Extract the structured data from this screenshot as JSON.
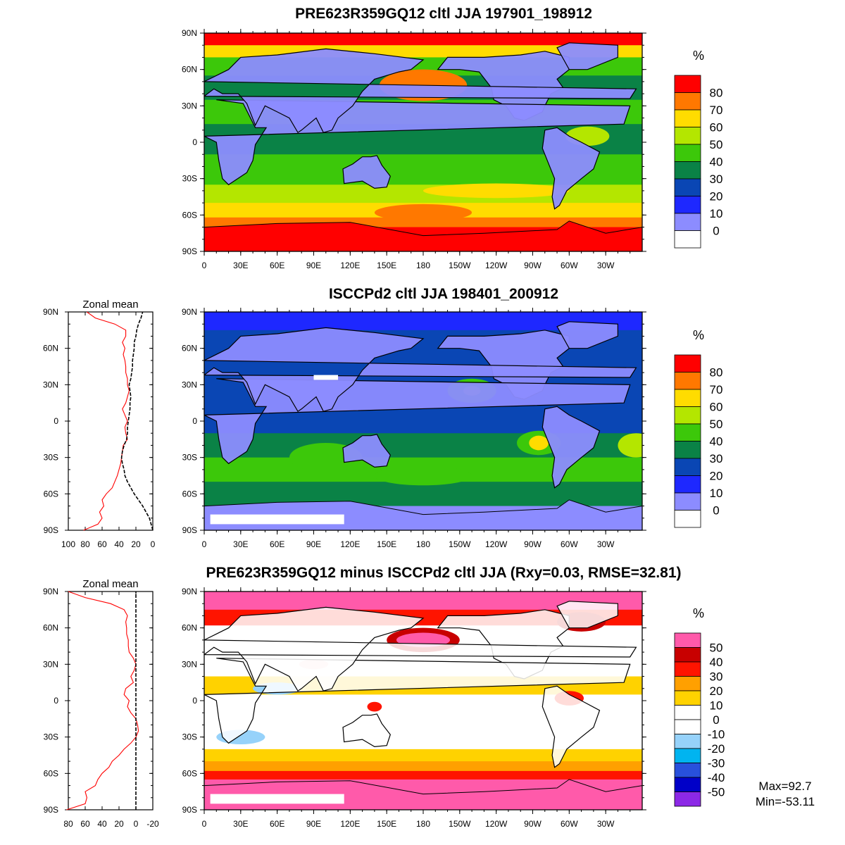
{
  "panels": [
    {
      "title": "PRE623R359GQ12 cltl JJA 197901_198912",
      "legend_unit": "%",
      "legend": [
        {
          "label": "80",
          "color": "#ff0000"
        },
        {
          "label": "70",
          "color": "#ff7800"
        },
        {
          "label": "60",
          "color": "#ffdc00"
        },
        {
          "label": "50",
          "color": "#b4e600"
        },
        {
          "label": "40",
          "color": "#3cc80a"
        },
        {
          "label": "30",
          "color": "#0a8246"
        },
        {
          "label": "20",
          "color": "#0a46b4"
        },
        {
          "label": "10",
          "color": "#1e28ff"
        },
        {
          "label": "0",
          "color": "#8c8cff"
        },
        {
          "label": "",
          "color": "#ffffff"
        }
      ]
    },
    {
      "title": "ISCCPd2 cltl JJA 198401_200912",
      "legend_unit": "%",
      "legend": [
        {
          "label": "80",
          "color": "#ff0000"
        },
        {
          "label": "70",
          "color": "#ff7800"
        },
        {
          "label": "60",
          "color": "#ffdc00"
        },
        {
          "label": "50",
          "color": "#b4e600"
        },
        {
          "label": "40",
          "color": "#3cc80a"
        },
        {
          "label": "30",
          "color": "#0a8246"
        },
        {
          "label": "20",
          "color": "#0a46b4"
        },
        {
          "label": "10",
          "color": "#1e28ff"
        },
        {
          "label": "0",
          "color": "#8c8cff"
        },
        {
          "label": "",
          "color": "#ffffff"
        }
      ],
      "zonal_mean": {
        "title": "Zonal mean",
        "x_ticks": [
          "100",
          "80",
          "60",
          "40",
          "20",
          "0"
        ],
        "series": [
          {
            "color": "#ff0000",
            "style": "solid",
            "lat": [
              -90,
              -85,
              -80,
              -75,
              -70,
              -65,
              -60,
              -55,
              -50,
              -45,
              -40,
              -35,
              -30,
              -25,
              -20,
              -15,
              -10,
              -5,
              0,
              5,
              10,
              15,
              20,
              25,
              30,
              35,
              40,
              45,
              50,
              55,
              60,
              65,
              70,
              75,
              80,
              85,
              90
            ],
            "value": [
              82,
              65,
              60,
              63,
              58,
              60,
              55,
              48,
              45,
              42,
              40,
              38,
              37,
              36,
              35,
              30,
              32,
              33,
              30,
              33,
              36,
              32,
              30,
              28,
              30,
              30,
              32,
              32,
              33,
              35,
              33,
              36,
              32,
              32,
              45,
              68,
              78
            ]
          },
          {
            "color": "#000000",
            "style": "dashed",
            "lat": [
              -90,
              -85,
              -80,
              -75,
              -70,
              -65,
              -60,
              -55,
              -50,
              -45,
              -40,
              -35,
              -30,
              -25,
              -20,
              -15,
              -10,
              -5,
              0,
              5,
              10,
              15,
              20,
              25,
              30,
              35,
              40,
              45,
              50,
              55,
              60,
              65,
              70,
              75,
              80,
              85,
              90
            ],
            "value": [
              0,
              2,
              4,
              8,
              12,
              17,
              22,
              26,
              30,
              33,
              34,
              36,
              37,
              36,
              34,
              31,
              30,
              30,
              29,
              28,
              27,
              27,
              26,
              27,
              28,
              26,
              25,
              24,
              24,
              23,
              22,
              22,
              20,
              19,
              17,
              14,
              12
            ]
          }
        ]
      }
    },
    {
      "title": "PRE623R359GQ12 minus ISCCPd2 cltl JJA (Rxy=0.03, RMSE=32.81)",
      "legend_unit": "%",
      "legend": [
        {
          "label": "50",
          "color": "#ff5aaa"
        },
        {
          "label": "40",
          "color": "#c80000"
        },
        {
          "label": "30",
          "color": "#ff1400"
        },
        {
          "label": "20",
          "color": "#ffa000"
        },
        {
          "label": "10",
          "color": "#ffd200"
        },
        {
          "label": "0",
          "color": "#ffffff"
        },
        {
          "label": "-10",
          "color": "#ffffff"
        },
        {
          "label": "-20",
          "color": "#96d2fa"
        },
        {
          "label": "-30",
          "color": "#00b4f0"
        },
        {
          "label": "-40",
          "color": "#2850dc"
        },
        {
          "label": "-50",
          "color": "#0000c8"
        },
        {
          "label": "",
          "color": "#8c28e6"
        }
      ],
      "zonal_mean": {
        "title": "Zonal mean",
        "x_ticks": [
          "80",
          "60",
          "40",
          "20",
          "0",
          "-20"
        ],
        "series": [
          {
            "color": "#ff0000",
            "style": "solid",
            "lat": [
              -90,
              -85,
              -80,
              -75,
              -70,
              -65,
              -60,
              -55,
              -50,
              -45,
              -40,
              -35,
              -30,
              -25,
              -20,
              -15,
              -10,
              -5,
              0,
              5,
              10,
              15,
              20,
              25,
              30,
              35,
              40,
              45,
              50,
              55,
              60,
              65,
              70,
              75,
              80,
              85,
              90
            ],
            "value": [
              82,
              60,
              58,
              60,
              48,
              45,
              40,
              32,
              28,
              20,
              14,
              6,
              0,
              -3,
              -2,
              0,
              6,
              10,
              8,
              14,
              12,
              3,
              6,
              2,
              0,
              3,
              8,
              9,
              9,
              11,
              11,
              12,
              10,
              14,
              30,
              60,
              80
            ]
          },
          {
            "color": "#000000",
            "style": "dashed",
            "lat": [
              -90,
              90
            ],
            "value": [
              0,
              0
            ]
          }
        ]
      },
      "stats": {
        "max": "Max=92.7",
        "min": "Min=-53.11"
      }
    }
  ],
  "map_axes": {
    "lat_ticks": [
      "90N",
      "60N",
      "30N",
      "0",
      "30S",
      "60S",
      "90S"
    ],
    "lon_ticks": [
      "0",
      "30E",
      "60E",
      "90E",
      "120E",
      "150E",
      "180",
      "150W",
      "120W",
      "90W",
      "60W",
      "30W"
    ]
  }
}
